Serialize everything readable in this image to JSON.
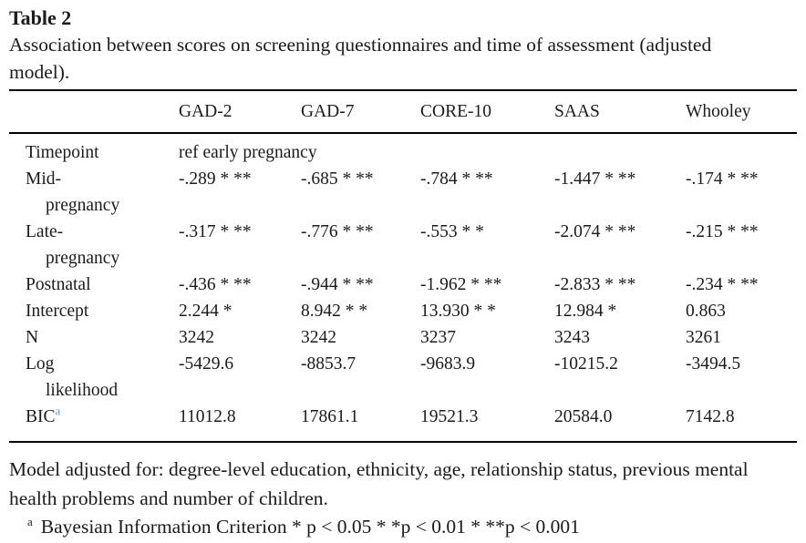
{
  "page": {
    "title": "Table 2",
    "caption": "Association between scores on screening questionnaires and time of assessment (adjusted model)."
  },
  "table": {
    "headers": [
      "GAD-2",
      "GAD-7",
      "CORE-10",
      "SAAS",
      "Whooley"
    ],
    "rows": [
      {
        "label": "Timepoint",
        "span_value": "ref early pregnancy"
      },
      {
        "label": "Mid-pregnancy",
        "values": [
          "-.289 * **",
          "-.685 * **",
          "-.784 * **",
          "-1.447 * **",
          "-.174 * **"
        ]
      },
      {
        "label": "Late-pregnancy",
        "values": [
          "-.317 * **",
          "-.776 * **",
          "-.553 * *",
          "-2.074 * **",
          "-.215 * **"
        ]
      },
      {
        "label": "Postnatal",
        "values": [
          "-.436 * **",
          "-.944 * **",
          "-1.962 * **",
          "-2.833 * **",
          "-.234 * **"
        ]
      },
      {
        "label": "Intercept",
        "values": [
          "2.244 *",
          "8.942 * *",
          "13.930 * *",
          "12.984 *",
          "0.863"
        ]
      },
      {
        "label": "N",
        "values": [
          "3242",
          "3242",
          "3237",
          "3243",
          "3261"
        ]
      },
      {
        "label": "Log likelihood",
        "values": [
          "-5429.6",
          "-8853.7",
          "-9683.9",
          "-10215.2",
          "-3494.5"
        ]
      },
      {
        "label": "BIC",
        "label_sup": "a",
        "values": [
          "11012.8",
          "17861.1",
          "19521.3",
          "20584.0",
          "7142.8"
        ]
      }
    ]
  },
  "footer": {
    "note": "Model adjusted for: degree-level education, ethnicity, age, relationship status, previous mental health problems and number of children.",
    "footnote_marker": "a",
    "footnote_text": "Bayesian Information Criterion * p < 0.05 * *p < 0.01 * **p < 0.001"
  },
  "colors": {
    "text": "#1b1b1b",
    "rule": "#000000",
    "bic_superscript_blue": "#5b9fd4"
  }
}
